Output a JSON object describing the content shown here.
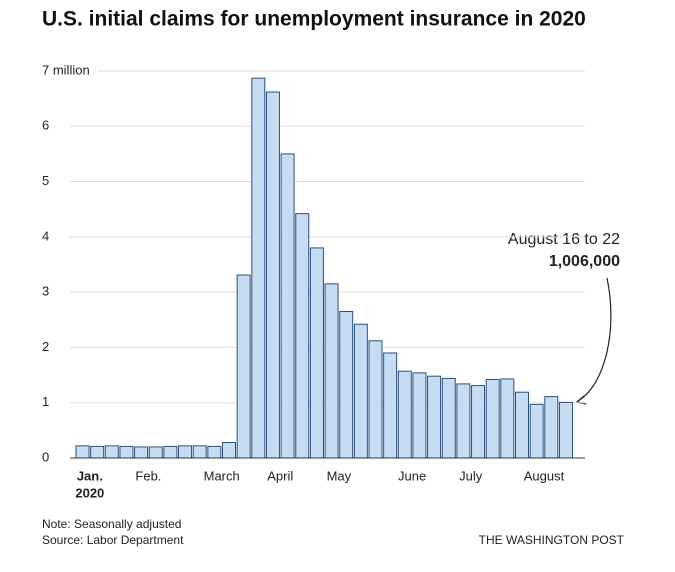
{
  "chart_data": {
    "type": "bar",
    "title": "U.S. initial claims for unemployment insurance in 2020",
    "categories": [
      "Jan.",
      null,
      null,
      null,
      "Feb.",
      null,
      null,
      null,
      null,
      "March",
      null,
      null,
      null,
      "April",
      null,
      null,
      null,
      "May",
      null,
      null,
      null,
      null,
      "June",
      null,
      null,
      null,
      "July",
      null,
      null,
      null,
      null,
      "August",
      null,
      null
    ],
    "year_label": "2020",
    "values": [
      0.22,
      0.21,
      0.22,
      0.21,
      0.2,
      0.2,
      0.21,
      0.22,
      0.22,
      0.21,
      0.28,
      3.31,
      6.87,
      6.62,
      5.5,
      4.42,
      3.8,
      3.15,
      2.65,
      2.42,
      2.12,
      1.9,
      1.57,
      1.54,
      1.48,
      1.44,
      1.34,
      1.31,
      1.42,
      1.43,
      1.19,
      0.97,
      1.11,
      1.006
    ],
    "value_labels": [
      null,
      null,
      null,
      null,
      null,
      null,
      null,
      null,
      null,
      null,
      null,
      null,
      null,
      null,
      null,
      null,
      null,
      null,
      null,
      null,
      null,
      null,
      null,
      null,
      null,
      null,
      null,
      null,
      null,
      null,
      null,
      null,
      null,
      "1,006,000"
    ],
    "annotation": "August 16 to 22",
    "color": "#c6dcf2",
    "edge_color": "#2d4f7c",
    "ylim": [
      0,
      7
    ],
    "yticks": [
      0,
      1,
      2,
      3,
      4,
      5,
      6,
      {
        "value": 7,
        "label": "7 million"
      }
    ],
    "grid": true,
    "notes": [
      "Note: Seasonally adjusted",
      "Source: Labor Department"
    ],
    "credit": "THE WASHINGTON POST"
  }
}
